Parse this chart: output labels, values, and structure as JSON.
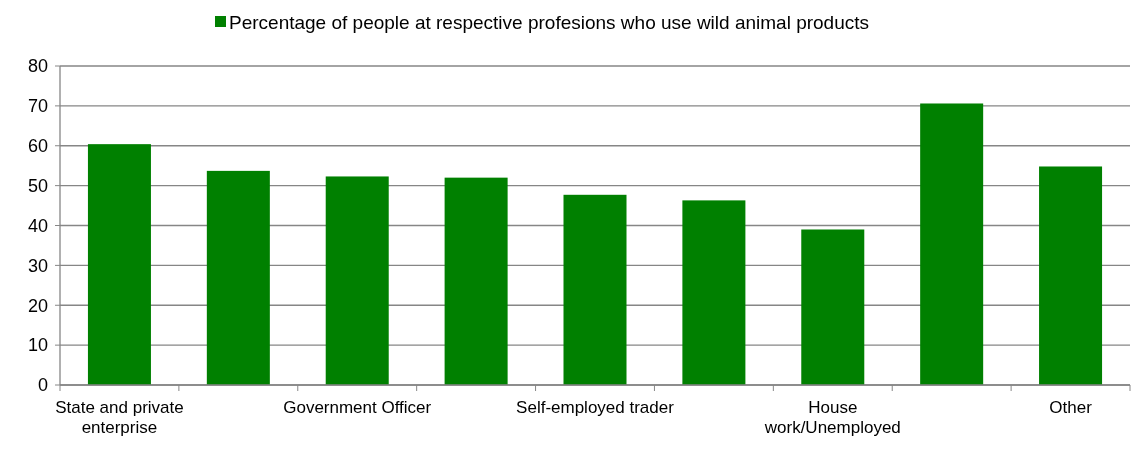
{
  "chart_data": {
    "type": "bar",
    "categories": [
      "State and private enterprise",
      null,
      "Government Officer",
      null,
      "Self-employed trader",
      null,
      "House work/Unemployed",
      null,
      "Other"
    ],
    "series": [
      {
        "name": "Percentage of people at respective profesions who use wild animal products",
        "color": "#008000",
        "values": [
          60.4,
          53.7,
          52.3,
          52.0,
          47.7,
          46.3,
          39.0,
          70.6,
          54.8
        ]
      }
    ],
    "ylim": [
      0,
      80
    ],
    "yticks": [
      0,
      10,
      20,
      30,
      40,
      50,
      60,
      70,
      80
    ],
    "grid": "y",
    "legend": "top"
  }
}
